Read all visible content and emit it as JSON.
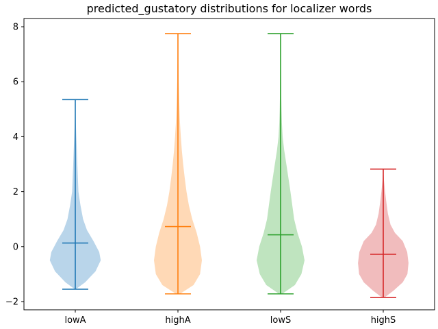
{
  "chart_data": {
    "type": "violin",
    "title": "predicted_gustatory distributions for localizer words",
    "xlabel": "",
    "ylabel": "",
    "ylim": [
      -2.3,
      8.3
    ],
    "yticks": [
      -2,
      0,
      2,
      4,
      6,
      8
    ],
    "categories": [
      "lowA",
      "highA",
      "lowS",
      "highS"
    ],
    "grid": false,
    "series": [
      {
        "color": "#1f77b4",
        "fill": "#b9d5ea",
        "min": -1.55,
        "max": 5.35,
        "mean": 0.13,
        "profile": [
          [
            -1.55,
            0.02
          ],
          [
            -1.3,
            0.38
          ],
          [
            -0.9,
            0.78
          ],
          [
            -0.5,
            0.98
          ],
          [
            -0.2,
            0.92
          ],
          [
            0.2,
            0.7
          ],
          [
            0.6,
            0.45
          ],
          [
            1.0,
            0.3
          ],
          [
            1.5,
            0.2
          ],
          [
            2.0,
            0.12
          ],
          [
            2.5,
            0.1
          ],
          [
            3.0,
            0.08
          ],
          [
            3.5,
            0.06
          ],
          [
            4.0,
            0.04
          ],
          [
            4.5,
            0.02
          ],
          [
            5.0,
            0.008
          ],
          [
            5.35,
            0.0
          ]
        ]
      },
      {
        "color": "#ff7f0e",
        "fill": "#ffd9b6",
        "min": -1.72,
        "max": 7.75,
        "mean": 0.73,
        "profile": [
          [
            -1.72,
            0.08
          ],
          [
            -1.4,
            0.6
          ],
          [
            -1.0,
            0.85
          ],
          [
            -0.5,
            0.92
          ],
          [
            0.0,
            0.85
          ],
          [
            0.5,
            0.72
          ],
          [
            1.0,
            0.55
          ],
          [
            1.5,
            0.42
          ],
          [
            2.0,
            0.33
          ],
          [
            2.5,
            0.26
          ],
          [
            3.0,
            0.2
          ],
          [
            3.5,
            0.15
          ],
          [
            4.0,
            0.11
          ],
          [
            4.5,
            0.08
          ],
          [
            5.0,
            0.06
          ],
          [
            5.5,
            0.045
          ],
          [
            6.0,
            0.03
          ],
          [
            6.5,
            0.02
          ],
          [
            7.0,
            0.012
          ],
          [
            7.5,
            0.005
          ],
          [
            7.75,
            0.0
          ]
        ]
      },
      {
        "color": "#2ca02c",
        "fill": "#bfe4bf",
        "min": -1.72,
        "max": 7.75,
        "mean": 0.43,
        "profile": [
          [
            -1.72,
            0.06
          ],
          [
            -1.4,
            0.55
          ],
          [
            -1.0,
            0.8
          ],
          [
            -0.5,
            0.92
          ],
          [
            0.0,
            0.82
          ],
          [
            0.5,
            0.65
          ],
          [
            1.0,
            0.52
          ],
          [
            1.5,
            0.45
          ],
          [
            2.0,
            0.38
          ],
          [
            2.5,
            0.3
          ],
          [
            3.0,
            0.22
          ],
          [
            3.5,
            0.14
          ],
          [
            4.0,
            0.08
          ],
          [
            4.5,
            0.05
          ],
          [
            5.0,
            0.035
          ],
          [
            5.5,
            0.025
          ],
          [
            6.0,
            0.018
          ],
          [
            6.5,
            0.012
          ],
          [
            7.0,
            0.008
          ],
          [
            7.5,
            0.004
          ],
          [
            7.75,
            0.0
          ]
        ]
      },
      {
        "color": "#d62728",
        "fill": "#f1bcbd",
        "min": -1.85,
        "max": 2.82,
        "mean": -0.28,
        "profile": [
          [
            -1.85,
            0.05
          ],
          [
            -1.6,
            0.4
          ],
          [
            -1.3,
            0.75
          ],
          [
            -1.0,
            0.93
          ],
          [
            -0.6,
            0.97
          ],
          [
            -0.2,
            0.92
          ],
          [
            0.2,
            0.75
          ],
          [
            0.5,
            0.45
          ],
          [
            0.8,
            0.28
          ],
          [
            1.2,
            0.18
          ],
          [
            1.6,
            0.12
          ],
          [
            2.0,
            0.07
          ],
          [
            2.4,
            0.03
          ],
          [
            2.82,
            0.0
          ]
        ]
      }
    ]
  }
}
